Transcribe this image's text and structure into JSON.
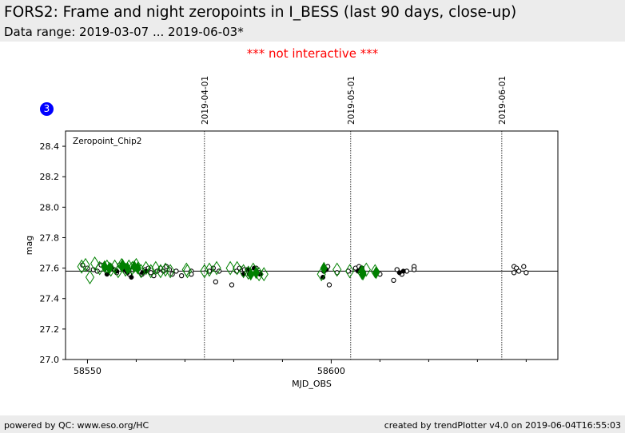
{
  "header": {
    "title": "FORS2: Frame and night zeropoints in I_BESS (last 90 days, close-up)",
    "subtitle": "Data range: 2019-03-07 ... 2019-06-03*"
  },
  "notice": "*** not interactive ***",
  "badge": "3",
  "footer": {
    "left": "powered by QC: www.eso.org/HC",
    "right": "created by trendPlotter v4.0 on 2019-06-04T16:55:03"
  },
  "colors": {
    "open_point": "#000000",
    "filled_point": "#000000",
    "diamond": "#008000",
    "reference": "#000000"
  },
  "chart_data": {
    "type": "scatter",
    "panel_label": "Zeropoint_Chip2",
    "xlabel": "MJD_OBS",
    "ylabel": "mag",
    "xlim": [
      58545.5,
      58646.5
    ],
    "ylim": [
      27.0,
      28.5
    ],
    "xticks": [
      58550,
      58600
    ],
    "xticks_minor": [
      58560,
      58570,
      58580,
      58590,
      58610,
      58620,
      58630,
      58640
    ],
    "yticks": [
      27.0,
      27.2,
      27.4,
      27.6,
      27.8,
      28.0,
      28.2,
      28.4
    ],
    "yticklabels": [
      "27.0",
      "27.2",
      "27.4",
      "27.6",
      "27.8",
      "28.0",
      "28.2",
      "28.4"
    ],
    "reference_line": 27.58,
    "date_markers": [
      {
        "label": "2019-04-01",
        "x": 58574.0
      },
      {
        "label": "2019-05-01",
        "x": 58604.0
      },
      {
        "label": "2019-06-01",
        "x": 58635.0
      }
    ],
    "series": [
      {
        "marker": "open-circle",
        "points": [
          [
            58549.0,
            27.62
          ],
          [
            58550.0,
            27.6
          ],
          [
            58551.2,
            27.59
          ],
          [
            58552.0,
            27.58
          ],
          [
            58552.8,
            27.62
          ],
          [
            58553.5,
            27.6
          ],
          [
            58554.2,
            27.58
          ],
          [
            58554.8,
            27.61
          ],
          [
            58555.5,
            27.59
          ],
          [
            58556.0,
            27.57
          ],
          [
            58556.6,
            27.62
          ],
          [
            58557.3,
            27.6
          ],
          [
            58558.0,
            27.58
          ],
          [
            58558.6,
            27.56
          ],
          [
            58559.3,
            27.59
          ],
          [
            58560.0,
            27.61
          ],
          [
            58560.6,
            27.58
          ],
          [
            58561.2,
            27.56
          ],
          [
            58561.8,
            27.59
          ],
          [
            58562.5,
            27.6
          ],
          [
            58563.0,
            27.57
          ],
          [
            58563.6,
            27.55
          ],
          [
            58564.3,
            27.58
          ],
          [
            58565.0,
            27.6
          ],
          [
            58565.6,
            27.58
          ],
          [
            58566.2,
            27.61
          ],
          [
            58566.8,
            27.59
          ],
          [
            58567.4,
            27.56
          ],
          [
            58568.2,
            27.58
          ],
          [
            58569.3,
            27.55
          ],
          [
            58571.3,
            27.58
          ],
          [
            58571.3,
            27.56
          ],
          [
            58575.0,
            27.58
          ],
          [
            58575.8,
            27.6
          ],
          [
            58576.3,
            27.51
          ],
          [
            58577.0,
            27.58
          ],
          [
            58579.6,
            27.49
          ],
          [
            58580.6,
            27.58
          ],
          [
            58581.2,
            27.6
          ],
          [
            58582.2,
            27.59
          ],
          [
            58583.2,
            27.56
          ],
          [
            58584.0,
            27.58
          ],
          [
            58584.6,
            27.6
          ],
          [
            58585.2,
            27.57
          ],
          [
            58598.5,
            27.58
          ],
          [
            58599.3,
            27.61
          ],
          [
            58599.6,
            27.49
          ],
          [
            58601.2,
            27.57
          ],
          [
            58603.5,
            27.58
          ],
          [
            58605.0,
            27.6
          ],
          [
            58605.7,
            27.61
          ],
          [
            58606.3,
            27.6
          ],
          [
            58610.0,
            27.56
          ],
          [
            58612.8,
            27.52
          ],
          [
            58613.5,
            27.59
          ],
          [
            58614.5,
            27.56
          ],
          [
            58615.5,
            27.58
          ],
          [
            58617.0,
            27.61
          ],
          [
            58617.0,
            27.59
          ],
          [
            58637.5,
            27.61
          ],
          [
            58637.5,
            27.57
          ],
          [
            58638.0,
            27.6
          ],
          [
            58638.5,
            27.58
          ],
          [
            58639.5,
            27.61
          ],
          [
            58640.0,
            27.57
          ]
        ]
      },
      {
        "marker": "filled-circle",
        "points": [
          [
            58554.0,
            27.56
          ],
          [
            58555.0,
            27.6
          ],
          [
            58556.0,
            27.58
          ],
          [
            58557.5,
            27.59
          ],
          [
            58558.2,
            27.57
          ],
          [
            58559.0,
            27.54
          ],
          [
            58559.6,
            27.6
          ],
          [
            58561.3,
            27.57
          ],
          [
            58562.0,
            27.58
          ],
          [
            58582.0,
            27.56
          ],
          [
            58582.8,
            27.59
          ],
          [
            58583.4,
            27.57
          ],
          [
            58584.2,
            27.6
          ],
          [
            58585.4,
            27.56
          ],
          [
            58598.3,
            27.54
          ],
          [
            58599.0,
            27.59
          ],
          [
            58605.5,
            27.58
          ],
          [
            58606.2,
            27.6
          ],
          [
            58614.0,
            27.57
          ],
          [
            58614.8,
            27.58
          ]
        ]
      },
      {
        "marker": "open-diamond",
        "points": [
          [
            58548.8,
            27.61
          ],
          [
            58549.6,
            27.62
          ],
          [
            58550.5,
            27.54
          ],
          [
            58551.5,
            27.63
          ],
          [
            58552.5,
            27.6
          ],
          [
            58554.0,
            27.61
          ],
          [
            58554.8,
            27.59
          ],
          [
            58555.6,
            27.61
          ],
          [
            58556.3,
            27.58
          ],
          [
            58557.0,
            27.62
          ],
          [
            58557.8,
            27.59
          ],
          [
            58558.5,
            27.61
          ],
          [
            58559.2,
            27.6
          ],
          [
            58560.0,
            27.62
          ],
          [
            58561.0,
            27.58
          ],
          [
            58562.0,
            27.6
          ],
          [
            58563.0,
            27.58
          ],
          [
            58564.0,
            27.6
          ],
          [
            58565.0,
            27.58
          ],
          [
            58566.0,
            27.59
          ],
          [
            58567.0,
            27.58
          ],
          [
            58570.3,
            27.59
          ],
          [
            58570.5,
            27.58
          ],
          [
            58574.0,
            27.58
          ],
          [
            58575.0,
            27.59
          ],
          [
            58576.5,
            27.6
          ],
          [
            58579.3,
            27.6
          ],
          [
            58580.7,
            27.6
          ],
          [
            58582.0,
            27.58
          ],
          [
            58583.0,
            27.57
          ],
          [
            58584.0,
            27.59
          ],
          [
            58585.2,
            27.56
          ],
          [
            58586.2,
            27.56
          ],
          [
            58598.0,
            27.56
          ],
          [
            58601.2,
            27.59
          ],
          [
            58603.8,
            27.58
          ],
          [
            58606.3,
            27.57
          ],
          [
            58607.2,
            27.59
          ],
          [
            58609.0,
            27.58
          ]
        ]
      },
      {
        "marker": "filled-diamond",
        "points": [
          [
            58553.5,
            27.61
          ],
          [
            58554.5,
            27.6
          ],
          [
            58557.2,
            27.62
          ],
          [
            58558.2,
            27.6
          ],
          [
            58559.6,
            27.61
          ],
          [
            58560.3,
            27.6
          ],
          [
            58583.5,
            27.56
          ],
          [
            58584.6,
            27.57
          ],
          [
            58598.5,
            27.6
          ],
          [
            58606.3,
            27.58
          ],
          [
            58606.5,
            27.56
          ],
          [
            58609.2,
            27.57
          ]
        ]
      }
    ]
  }
}
